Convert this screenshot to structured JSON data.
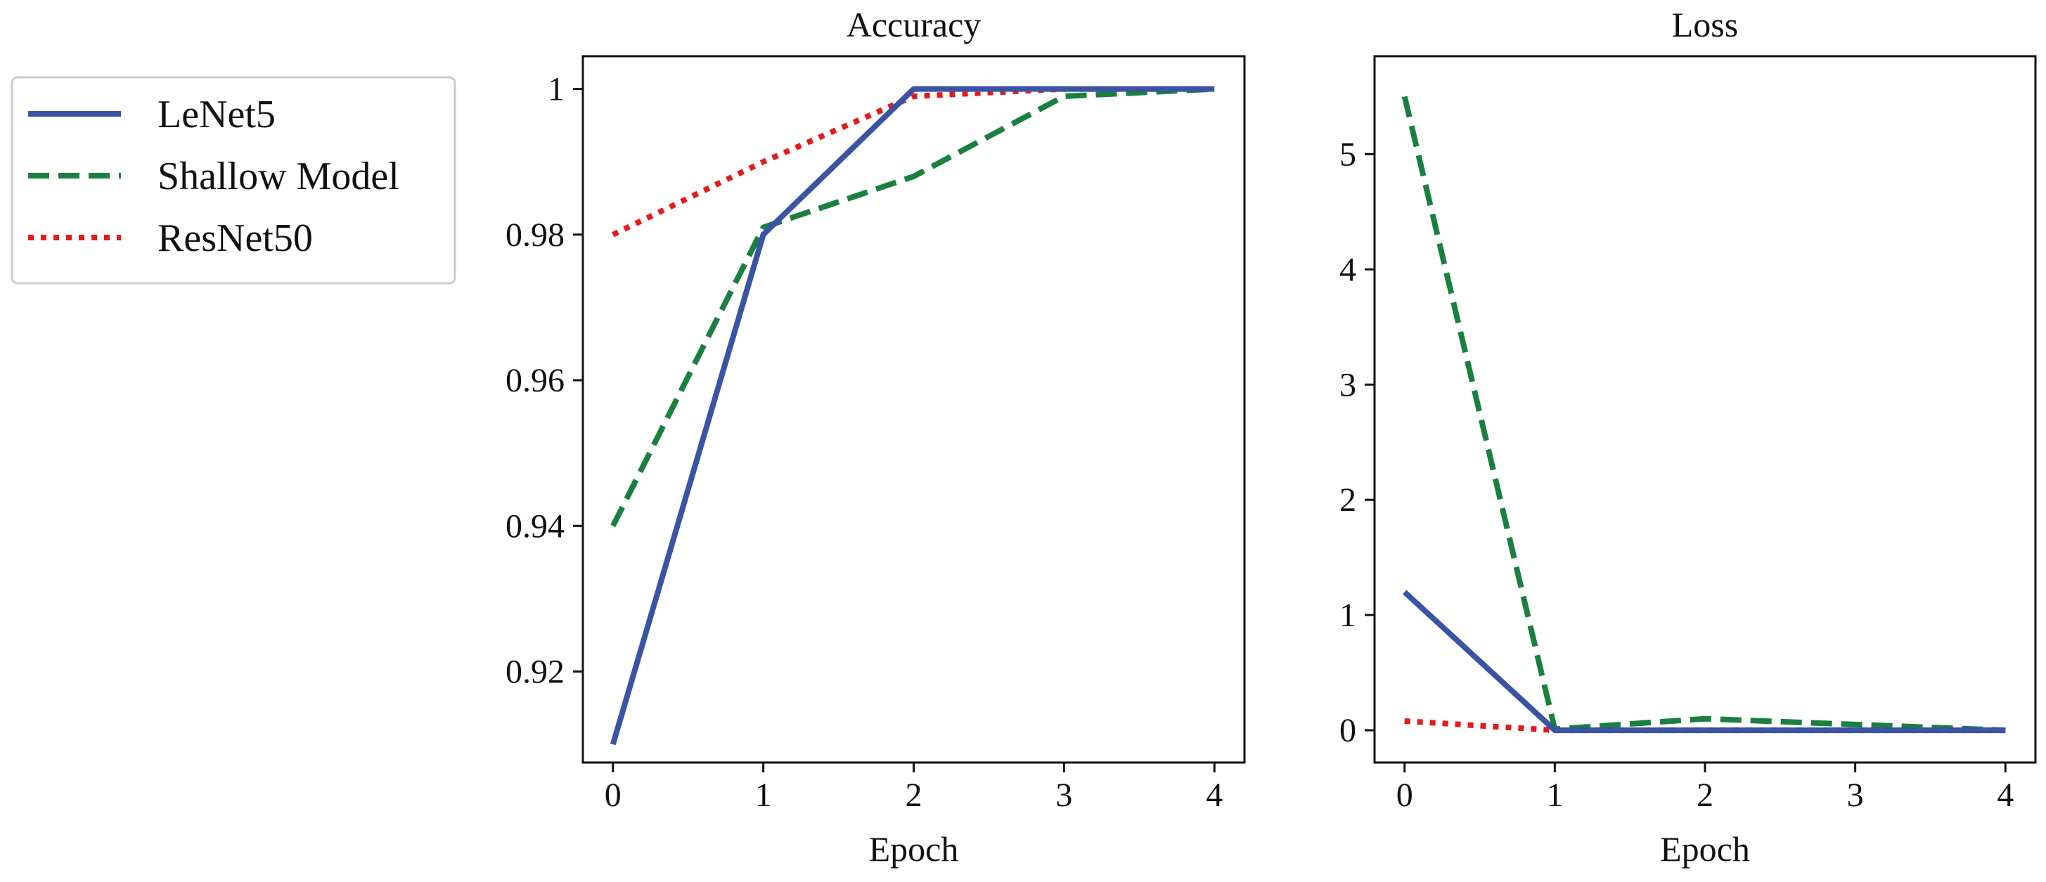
{
  "chart_data": {
    "type": "line",
    "legend": {
      "placement": "left",
      "entries": [
        {
          "name": "LeNet5",
          "color": "#3a53a4",
          "style": "solid"
        },
        {
          "name": "Shallow Model",
          "color": "#1a8040",
          "style": "dashed"
        },
        {
          "name": "ResNet50",
          "color": "#e41a1c",
          "style": "dotted"
        }
      ]
    },
    "panels": [
      {
        "id": "accuracy",
        "title": "Accuracy",
        "xlabel": "Epoch",
        "ylabel": "",
        "x": [
          0,
          1,
          2,
          3,
          4
        ],
        "xlim": [
          -0.2,
          4.2
        ],
        "ylim": [
          0.9075,
          1.0045
        ],
        "xticks": [
          0,
          1,
          2,
          3,
          4
        ],
        "yticks": [
          0.92,
          0.94,
          0.96,
          0.98,
          1.0
        ],
        "ytick_labels": [
          "0.92",
          "0.94",
          "0.96",
          "0.98",
          "1"
        ],
        "grid": false,
        "series": [
          {
            "name": "LeNet5",
            "values": [
              0.91,
              0.98,
              1.0,
              1.0,
              1.0
            ]
          },
          {
            "name": "Shallow Model",
            "values": [
              0.94,
              0.981,
              0.988,
              0.999,
              1.0
            ]
          },
          {
            "name": "ResNet50",
            "values": [
              0.98,
              0.99,
              0.999,
              1.0,
              1.0
            ]
          }
        ]
      },
      {
        "id": "loss",
        "title": "Loss",
        "xlabel": "Epoch",
        "ylabel": "",
        "x": [
          0,
          1,
          2,
          3,
          4
        ],
        "xlim": [
          -0.2,
          4.2
        ],
        "ylim": [
          -0.28,
          5.85
        ],
        "xticks": [
          0,
          1,
          2,
          3,
          4
        ],
        "yticks": [
          0,
          1,
          2,
          3,
          4,
          5
        ],
        "ytick_labels": [
          "0",
          "1",
          "2",
          "3",
          "4",
          "5"
        ],
        "grid": false,
        "series": [
          {
            "name": "LeNet5",
            "values": [
              1.2,
              0.0,
              0.0,
              0.0,
              0.0
            ]
          },
          {
            "name": "Shallow Model",
            "values": [
              5.5,
              0.01,
              0.1,
              0.05,
              0.0
            ]
          },
          {
            "name": "ResNet50",
            "values": [
              0.08,
              0.0,
              0.0,
              0.0,
              0.0
            ]
          }
        ]
      }
    ]
  }
}
